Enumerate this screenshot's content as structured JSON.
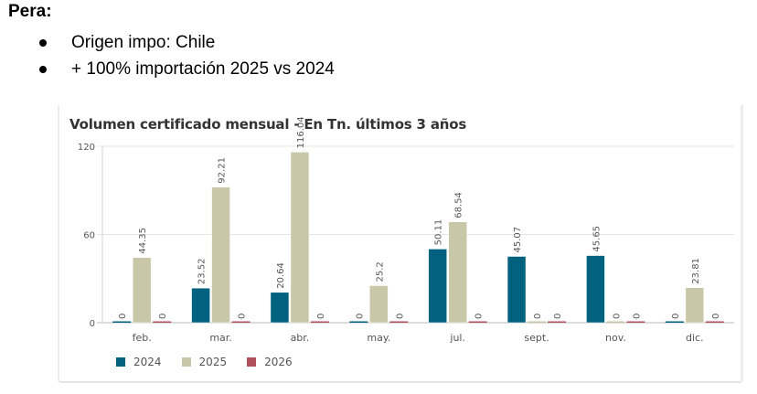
{
  "slide": {
    "title": "Pera:",
    "bullets": [
      "Origen impo: Chile",
      "+ 100% importación 2025 vs 2024"
    ]
  },
  "chart_data": {
    "type": "bar",
    "title": "Volumen certificado mensual - En Tn. últimos 3 años",
    "xlabel": "",
    "ylabel": "",
    "ylim": [
      0,
      120
    ],
    "yticks": [
      0,
      60,
      120
    ],
    "grid": true,
    "legend_position": "bottom-left",
    "categories": [
      "feb.",
      "mar.",
      "abr.",
      "may.",
      "jul.",
      "sept.",
      "nov.",
      "dic."
    ],
    "series": [
      {
        "name": "2024",
        "color": "#00627f",
        "values": [
          0,
          23.52,
          20.64,
          0,
          50.11,
          45.07,
          45.65,
          0
        ]
      },
      {
        "name": "2025",
        "color": "#c8c8a8",
        "values": [
          44.35,
          92.21,
          116.04,
          25.2,
          68.54,
          0,
          0,
          23.81
        ]
      },
      {
        "name": "2026",
        "color": "#b0505c",
        "values": [
          0,
          0,
          0,
          0,
          0,
          0,
          0,
          0
        ]
      }
    ]
  }
}
